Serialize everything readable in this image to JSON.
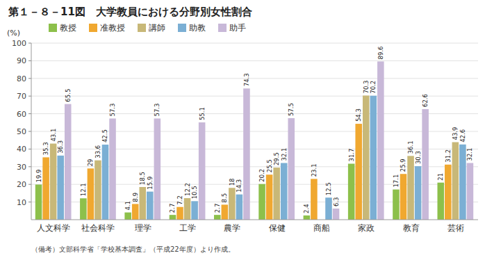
{
  "chart_data": {
    "type": "bar",
    "title": "第１－８－11図　大学教員における分野別女性割合",
    "y_label": "(%)",
    "footnote": "（備考）文部科学省「学校基本調査」（平成22年度）より作成。",
    "categories": [
      "人文科学",
      "社会科学",
      "理学",
      "工学",
      "農学",
      "保健",
      "商船",
      "家政",
      "教育",
      "芸術"
    ],
    "series": [
      {
        "name": "教授",
        "color": "#8dc04b",
        "values": [
          19.9,
          12.1,
          4.1,
          2.7,
          2.7,
          20.2,
          2.4,
          31.7,
          17.1,
          21.0
        ]
      },
      {
        "name": "准教授",
        "color": "#f0a830",
        "values": [
          35.3,
          29.0,
          8.9,
          7.2,
          8.5,
          25.5,
          23.1,
          54.3,
          25.9,
          31.2
        ]
      },
      {
        "name": "講師",
        "color": "#c8b878",
        "values": [
          43.1,
          33.6,
          18.5,
          12.2,
          18.0,
          29.5,
          0.0,
          70.3,
          36.1,
          43.9
        ]
      },
      {
        "name": "助教",
        "color": "#7bafd4",
        "values": [
          36.3,
          42.5,
          15.9,
          10.5,
          14.3,
          32.1,
          12.5,
          70.2,
          30.3,
          42.6
        ]
      },
      {
        "name": "助手",
        "color": "#c8b8d8",
        "values": [
          65.5,
          57.3,
          57.3,
          55.1,
          74.3,
          57.5,
          6.3,
          89.6,
          62.6,
          32.1
        ]
      }
    ],
    "ylim": [
      0,
      100
    ],
    "yticks": [
      10,
      20,
      30,
      40,
      50,
      60,
      70,
      80,
      90,
      100
    ],
    "grid": true,
    "legend": "top",
    "data_labels": true
  }
}
